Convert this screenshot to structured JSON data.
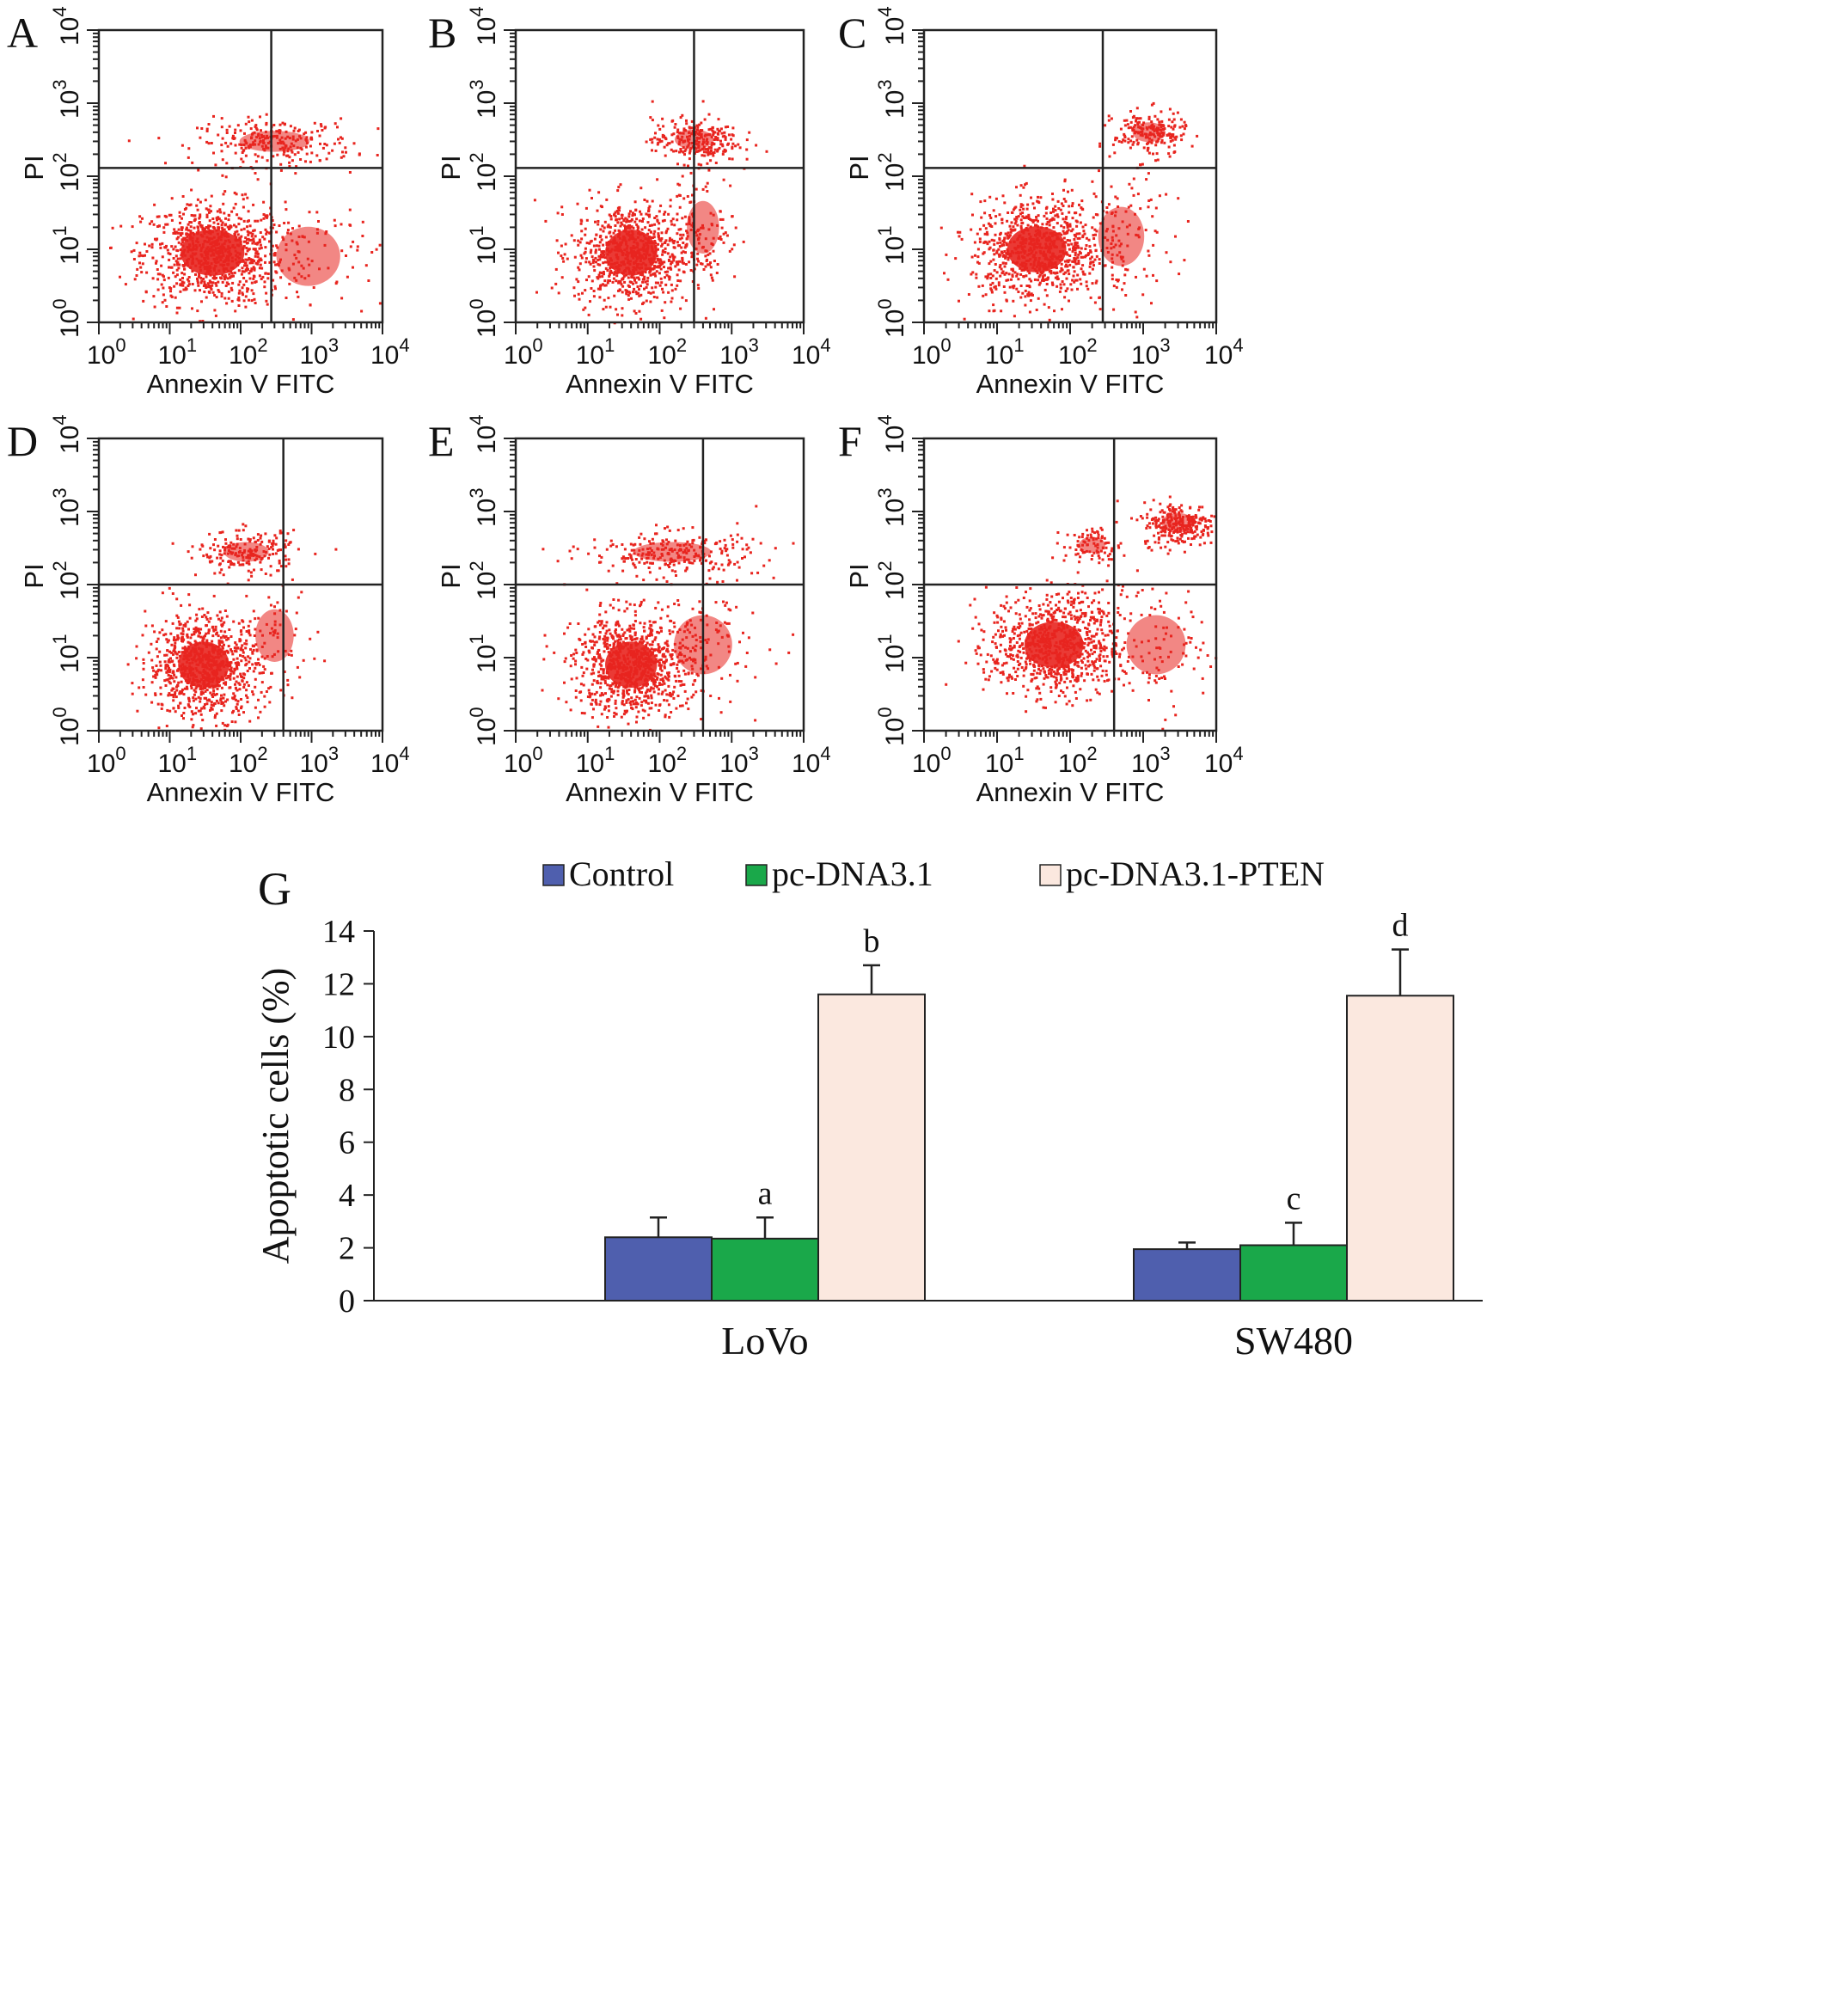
{
  "figure": {
    "flow_panels": [
      {
        "label": "A",
        "xlabel": "Annexin V FITC",
        "ylabel": "PI"
      },
      {
        "label": "B",
        "xlabel": "Annexin V FITC",
        "ylabel": "PI"
      },
      {
        "label": "C",
        "xlabel": "Annexin V FITC",
        "ylabel": "PI"
      },
      {
        "label": "D",
        "xlabel": "Annexin V FITC",
        "ylabel": "PI"
      },
      {
        "label": "E",
        "xlabel": "Annexin V FITC",
        "ylabel": "PI"
      },
      {
        "label": "F",
        "xlabel": "Annexin V FITC",
        "ylabel": "PI"
      }
    ],
    "bar_panel_label": "G"
  },
  "chart_data": [
    {
      "type": "scatter",
      "panel": "A",
      "title": "",
      "xlabel": "Annexin V FITC",
      "ylabel": "PI",
      "x_scale": "log",
      "y_scale": "log",
      "xlim": [
        1,
        10000
      ],
      "ylim": [
        1,
        10000
      ],
      "tick_labels": [
        "10^0",
        "10^1",
        "10^2",
        "10^3",
        "10^4"
      ],
      "quadrant_gate": {
        "x": 270,
        "y": 130
      },
      "clusters": [
        {
          "center": [
            40,
            9
          ],
          "spread": [
            0.5,
            0.35
          ],
          "n": 900
        },
        {
          "center": [
            300,
            300
          ],
          "spread": [
            0.55,
            0.16
          ],
          "n": 260
        },
        {
          "center": [
            900,
            8
          ],
          "spread": [
            0.5,
            0.45
          ],
          "n": 90
        }
      ]
    },
    {
      "type": "scatter",
      "panel": "B",
      "title": "",
      "xlabel": "Annexin V FITC",
      "ylabel": "PI",
      "x_scale": "log",
      "y_scale": "log",
      "xlim": [
        1,
        10000
      ],
      "ylim": [
        1,
        10000
      ],
      "tick_labels": [
        "10^0",
        "10^1",
        "10^2",
        "10^3",
        "10^4"
      ],
      "quadrant_gate": {
        "x": 300,
        "y": 130
      },
      "clusters": [
        {
          "center": [
            40,
            9
          ],
          "spread": [
            0.4,
            0.35
          ],
          "n": 850
        },
        {
          "center": [
            300,
            320
          ],
          "spread": [
            0.3,
            0.15
          ],
          "n": 260
        },
        {
          "center": [
            400,
            20
          ],
          "spread": [
            0.25,
            0.4
          ],
          "n": 110
        }
      ]
    },
    {
      "type": "scatter",
      "panel": "C",
      "title": "",
      "xlabel": "Annexin V FITC",
      "ylabel": "PI",
      "x_scale": "log",
      "y_scale": "log",
      "xlim": [
        1,
        10000
      ],
      "ylim": [
        1,
        10000
      ],
      "tick_labels": [
        "10^0",
        "10^1",
        "10^2",
        "10^3",
        "10^4"
      ],
      "quadrant_gate": {
        "x": 280,
        "y": 130
      },
      "clusters": [
        {
          "center": [
            35,
            10
          ],
          "spread": [
            0.45,
            0.35
          ],
          "n": 850
        },
        {
          "center": [
            1200,
            400
          ],
          "spread": [
            0.25,
            0.15
          ],
          "n": 200
        },
        {
          "center": [
            500,
            15
          ],
          "spread": [
            0.35,
            0.45
          ],
          "n": 120
        }
      ]
    },
    {
      "type": "scatter",
      "panel": "D",
      "title": "",
      "xlabel": "Annexin V FITC",
      "ylabel": "PI",
      "x_scale": "log",
      "y_scale": "log",
      "xlim": [
        1,
        10000
      ],
      "ylim": [
        1,
        10000
      ],
      "tick_labels": [
        "10^0",
        "10^1",
        "10^2",
        "10^3",
        "10^4"
      ],
      "quadrant_gate": {
        "x": 400,
        "y": 100
      },
      "clusters": [
        {
          "center": [
            30,
            8
          ],
          "spread": [
            0.4,
            0.35
          ],
          "n": 900
        },
        {
          "center": [
            120,
            280
          ],
          "spread": [
            0.35,
            0.15
          ],
          "n": 200
        },
        {
          "center": [
            300,
            20
          ],
          "spread": [
            0.3,
            0.4
          ],
          "n": 60
        }
      ]
    },
    {
      "type": "scatter",
      "panel": "E",
      "title": "",
      "xlabel": "Annexin V FITC",
      "ylabel": "PI",
      "x_scale": "log",
      "y_scale": "log",
      "xlim": [
        1,
        10000
      ],
      "ylim": [
        1,
        10000
      ],
      "tick_labels": [
        "10^0",
        "10^1",
        "10^2",
        "10^3",
        "10^4"
      ],
      "quadrant_gate": {
        "x": 400,
        "y": 100
      },
      "clusters": [
        {
          "center": [
            40,
            8
          ],
          "spread": [
            0.4,
            0.35
          ],
          "n": 900
        },
        {
          "center": [
            150,
            280
          ],
          "spread": [
            0.6,
            0.15
          ],
          "n": 260
        },
        {
          "center": [
            400,
            15
          ],
          "spread": [
            0.45,
            0.45
          ],
          "n": 110
        }
      ]
    },
    {
      "type": "scatter",
      "panel": "F",
      "title": "",
      "xlabel": "Annexin V FITC",
      "ylabel": "PI",
      "x_scale": "log",
      "y_scale": "log",
      "xlim": [
        1,
        10000
      ],
      "ylim": [
        1,
        10000
      ],
      "tick_labels": [
        "10^0",
        "10^1",
        "10^2",
        "10^3",
        "10^4"
      ],
      "quadrant_gate": {
        "x": 400,
        "y": 100
      },
      "clusters": [
        {
          "center": [
            60,
            15
          ],
          "spread": [
            0.45,
            0.35
          ],
          "n": 850
        },
        {
          "center": [
            3000,
            700
          ],
          "spread": [
            0.25,
            0.15
          ],
          "n": 280
        },
        {
          "center": [
            200,
            350
          ],
          "spread": [
            0.2,
            0.12
          ],
          "n": 90
        },
        {
          "center": [
            1500,
            15
          ],
          "spread": [
            0.45,
            0.45
          ],
          "n": 110
        }
      ]
    },
    {
      "type": "bar",
      "panel": "G",
      "title": "",
      "xlabel": "",
      "ylabel": "Apoptotic cells (%)",
      "categories": [
        "LoVo",
        "SW480"
      ],
      "series": [
        {
          "name": "Control",
          "color": "#4f5fae",
          "values": [
            2.4,
            1.95
          ],
          "errors": [
            0.75,
            0.25
          ],
          "letters": [
            "",
            ""
          ]
        },
        {
          "name": "pc-DNA3.1",
          "color": "#1aa84a",
          "values": [
            2.35,
            2.1
          ],
          "errors": [
            0.8,
            0.85
          ],
          "letters": [
            "a",
            "c"
          ]
        },
        {
          "name": "pc-DNA3.1-PTEN",
          "color": "#fbe8df",
          "values": [
            11.6,
            11.55
          ],
          "errors": [
            1.1,
            1.75
          ],
          "letters": [
            "b",
            "d"
          ]
        }
      ],
      "ylim": [
        0,
        14
      ],
      "yticks": [
        0,
        2,
        4,
        6,
        8,
        10,
        12,
        14
      ],
      "legend": "top"
    }
  ]
}
